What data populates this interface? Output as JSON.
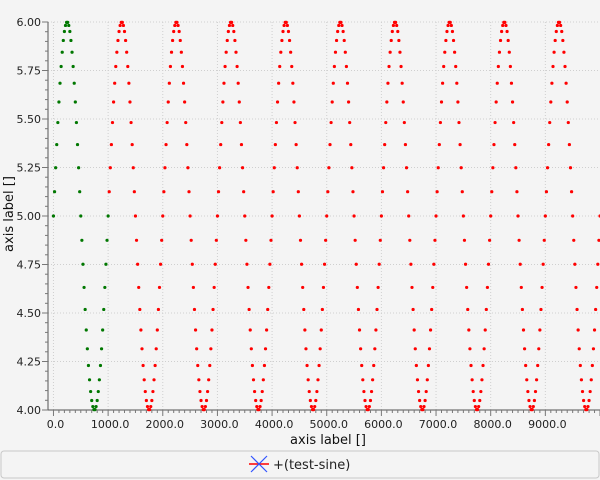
{
  "chart_data": {
    "type": "scatter",
    "title": "",
    "xlabel": "axis label []",
    "ylabel": "axis label []",
    "xlim": [
      -100,
      10000
    ],
    "ylim": [
      4.0,
      6.0
    ],
    "x_ticks": [
      0,
      1000,
      2000,
      3000,
      4000,
      5000,
      6000,
      7000,
      8000,
      9000
    ],
    "x_tick_labels": [
      "0.0",
      "1000.0",
      "2000.0",
      "3000.0",
      "4000.0",
      "5000.0",
      "6000.0",
      "7000.0",
      "8000.0",
      "9000.0"
    ],
    "y_ticks": [
      4.0,
      4.25,
      4.5,
      4.75,
      5.0,
      5.25,
      5.5,
      5.75,
      6.0
    ],
    "y_tick_labels": [
      "4.00",
      "4.25",
      "4.50",
      "4.75",
      "5.00",
      "5.25",
      "5.50",
      "5.75",
      "6.00"
    ],
    "grid": true,
    "legend_position": "bottom",
    "series": [
      {
        "name": "+(test-sine)",
        "color": "#ff0000",
        "function": "5 + sin(2*pi*x/1000)",
        "x_range": [
          0,
          10000
        ],
        "x_step": 20,
        "highlighted_x_range": [
          0,
          1000
        ],
        "highlight_color": "#007700"
      }
    ]
  },
  "legend": {
    "label": "+(test-sine)"
  }
}
